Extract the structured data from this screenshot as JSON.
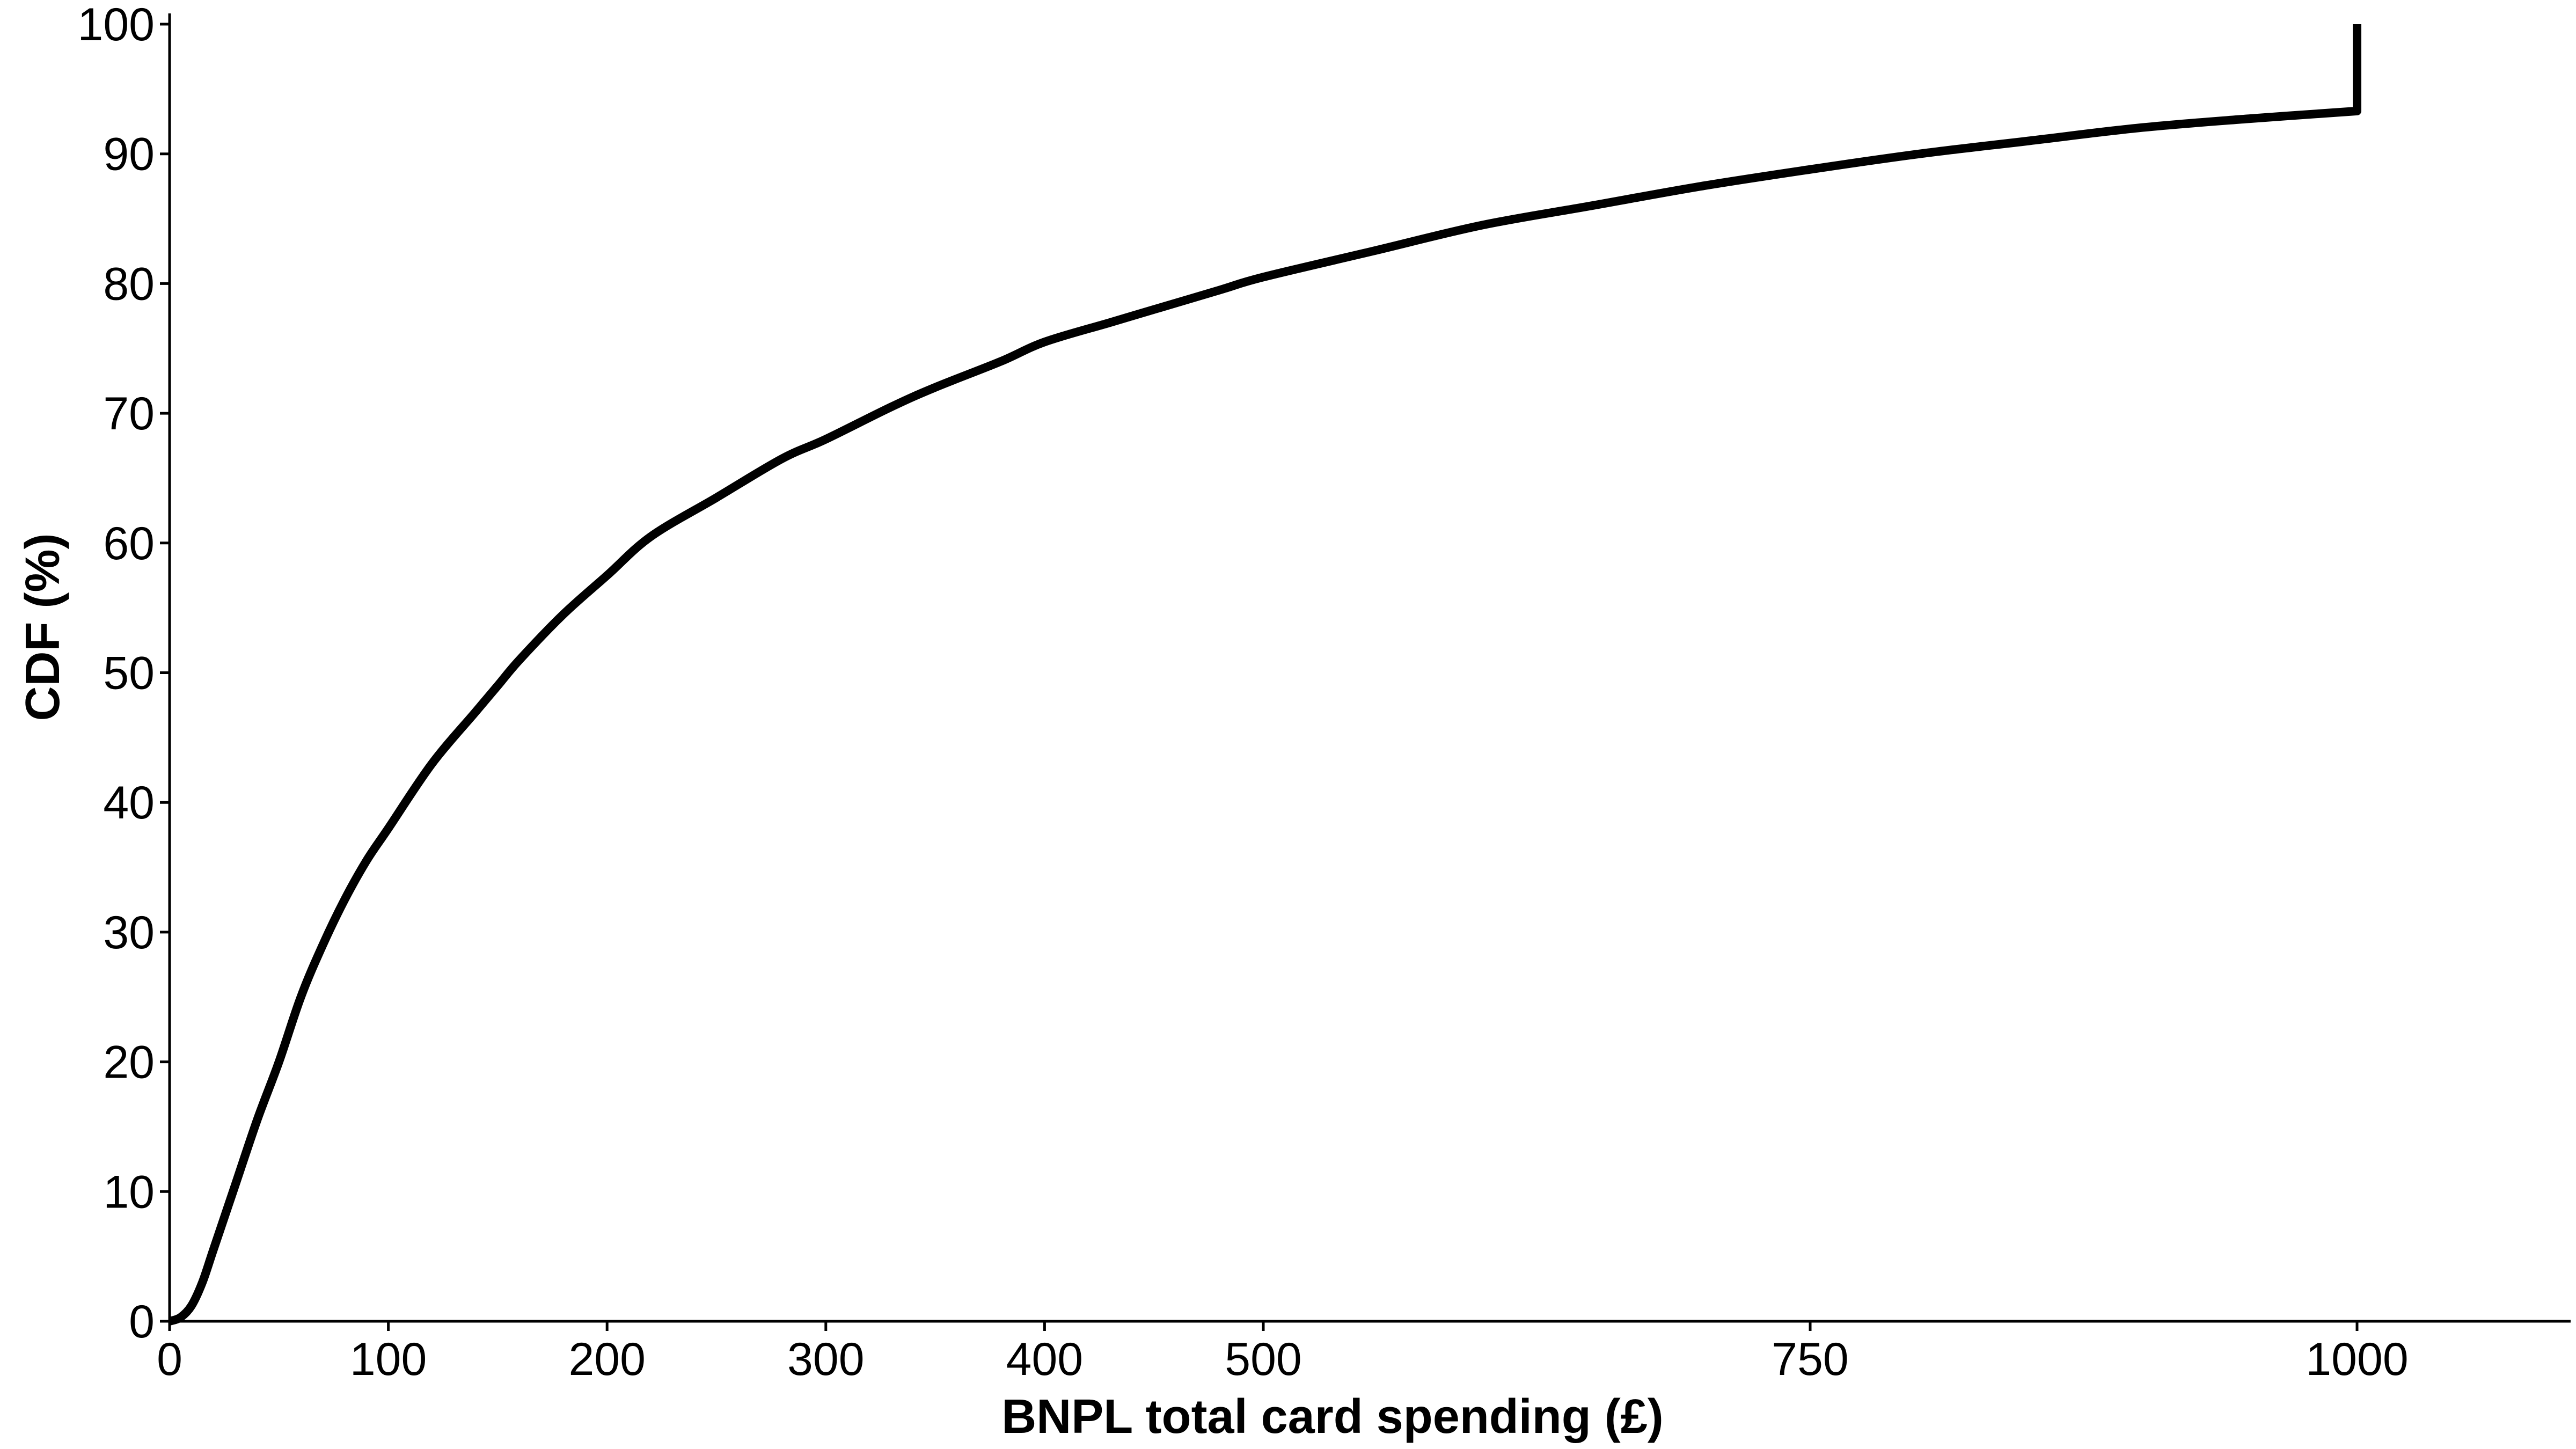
{
  "chart_data": {
    "type": "line",
    "title": "",
    "xlabel": "BNPL total card spending (£)",
    "ylabel": "CDF (%)",
    "xlim": [
      0,
      1100
    ],
    "ylim": [
      0,
      100
    ],
    "x_ticks": [
      0,
      100,
      200,
      300,
      400,
      500,
      750,
      1000
    ],
    "y_ticks": [
      0,
      10,
      20,
      30,
      40,
      50,
      60,
      70,
      80,
      90,
      100
    ],
    "grid": false,
    "legend": "none",
    "line_color": "#000000",
    "series": [
      {
        "x": [
          0,
          5,
          10,
          15,
          20,
          30,
          40,
          50,
          60,
          70,
          80,
          90,
          100,
          120,
          140,
          150,
          160,
          180,
          200,
          220,
          250,
          280,
          300,
          330,
          350,
          380,
          400,
          430,
          450,
          480,
          500,
          550,
          600,
          650,
          700,
          750,
          800,
          850,
          900,
          950,
          1000,
          1000
        ],
        "y": [
          0,
          0.3,
          1.2,
          3,
          5.5,
          10.5,
          15.5,
          20,
          25,
          29,
          32.5,
          35.5,
          38,
          43,
          47,
          49,
          51,
          54.5,
          57.5,
          60.5,
          63.5,
          66.5,
          68,
          70.5,
          72,
          74,
          75.5,
          77,
          78,
          79.5,
          80.5,
          82.5,
          84.5,
          86,
          87.5,
          88.8,
          90,
          91,
          92,
          92.7,
          93.3,
          100
        ]
      }
    ]
  }
}
